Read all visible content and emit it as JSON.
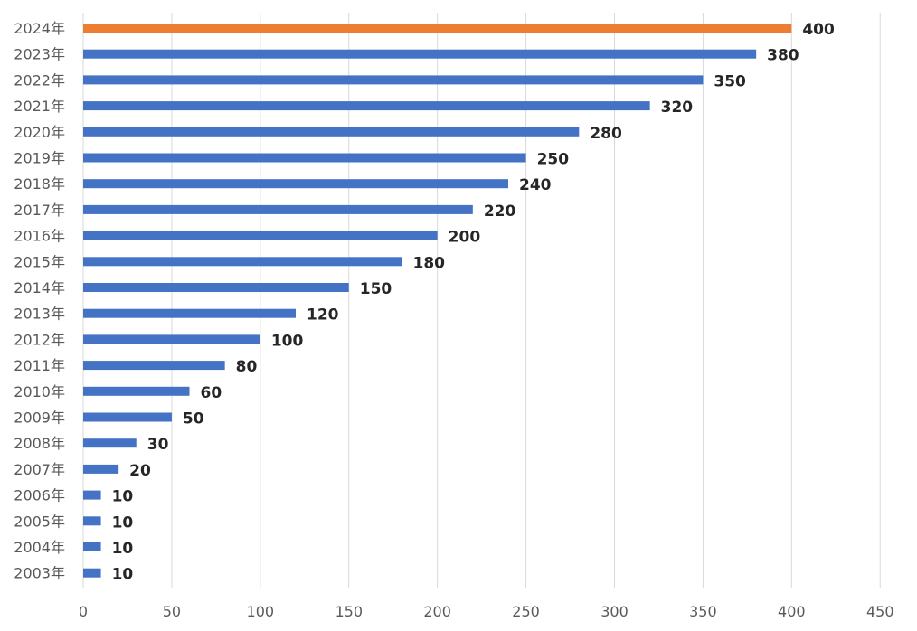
{
  "chart_data": {
    "type": "bar",
    "orientation": "horizontal",
    "categories": [
      "2024年",
      "2023年",
      "2022年",
      "2021年",
      "2020年",
      "2019年",
      "2018年",
      "2017年",
      "2016年",
      "2015年",
      "2014年",
      "2013年",
      "2012年",
      "2011年",
      "2010年",
      "2009年",
      "2008年",
      "2007年",
      "2006年",
      "2005年",
      "2004年",
      "2003年"
    ],
    "values": [
      400,
      380,
      350,
      320,
      280,
      250,
      240,
      220,
      200,
      180,
      150,
      120,
      100,
      80,
      60,
      50,
      30,
      20,
      10,
      10,
      10,
      10
    ],
    "highlight_index": 0,
    "colors": {
      "bar": "#4472c4",
      "highlight": "#ed7d31"
    },
    "xlim": [
      0,
      450
    ],
    "xticks": [
      "0",
      "50",
      "100",
      "150",
      "200",
      "250",
      "300",
      "350",
      "400",
      "450"
    ],
    "grid": true,
    "data_labels": true,
    "title": "",
    "xlabel": "",
    "ylabel": ""
  }
}
